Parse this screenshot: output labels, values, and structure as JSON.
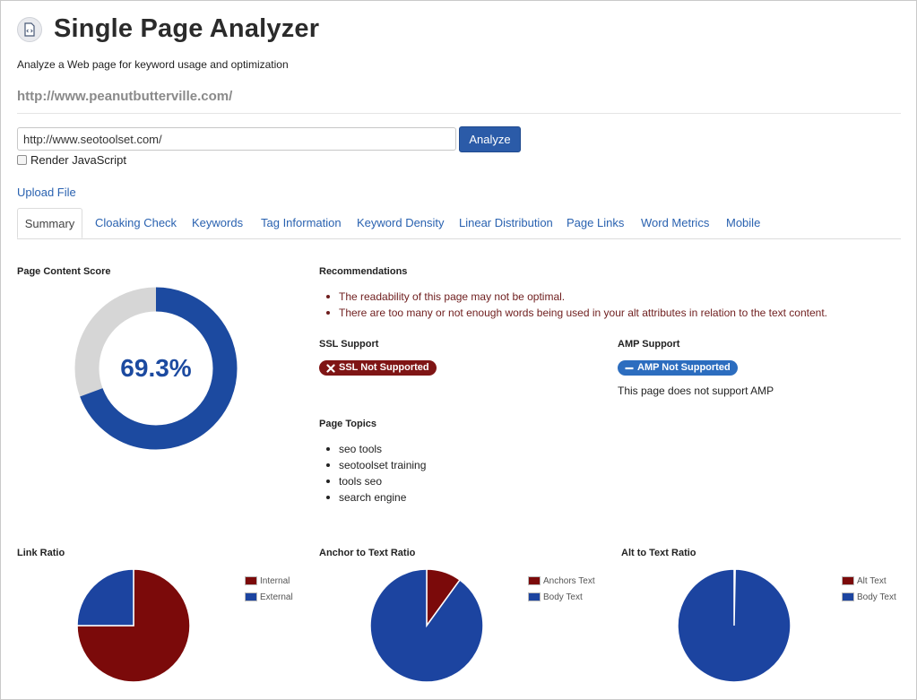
{
  "header": {
    "title": "Single Page Analyzer",
    "subtitle": "Analyze a Web page for keyword usage and optimization",
    "analyzed_url": "http://www.peanutbutterville.com/",
    "logo_icon": "code-file-icon"
  },
  "form": {
    "url_value": "http://www.seotoolset.com/",
    "analyze_label": "Analyze",
    "render_js_label": "Render JavaScript",
    "render_js_checked": false,
    "upload_label": "Upload File"
  },
  "tabs": [
    {
      "label": "Summary",
      "active": true
    },
    {
      "label": "Cloaking Check"
    },
    {
      "label": "Keywords"
    },
    {
      "label": "Tag Information"
    },
    {
      "label": "Keyword Density"
    },
    {
      "label": "Linear Distribution"
    },
    {
      "label": "Page Links"
    },
    {
      "label": "Word Metrics"
    },
    {
      "label": "Mobile"
    }
  ],
  "score": {
    "label": "Page Content Score",
    "value_text": "69.3%",
    "value": 69.3,
    "fill_color": "#1c4aa0",
    "track_color": "#d6d6d6"
  },
  "recommendations": {
    "label": "Recommendations",
    "items": [
      "The readability of this page may not be optimal.",
      "There are too many or not enough words being used in your alt attributes in relation to the text content."
    ]
  },
  "ssl": {
    "label": "SSL Support",
    "badge_text": "SSL Not Supported",
    "badge_icon": "x-icon",
    "color": "#7f1515"
  },
  "amp": {
    "label": "AMP Support",
    "badge_text": "AMP Not Supported",
    "badge_icon": "minus-icon",
    "color": "#2c6dbf",
    "note": "This page does not support AMP"
  },
  "topics": {
    "label": "Page Topics",
    "items": [
      "seo tools",
      "seotoolset training",
      "tools seo",
      "search engine"
    ]
  },
  "colors": {
    "dark_red": "#7b0a0a",
    "blue": "#1c44a0"
  },
  "chart_data": [
    {
      "type": "pie",
      "title": "Link Ratio",
      "categories": [
        "Internal",
        "External"
      ],
      "values": [
        75,
        25
      ],
      "colors": [
        "#7b0a0a",
        "#1c44a0"
      ]
    },
    {
      "type": "pie",
      "title": "Anchor to Text Ratio",
      "categories": [
        "Anchors Text",
        "Body Text"
      ],
      "values": [
        10,
        90
      ],
      "colors": [
        "#7b0a0a",
        "#1c44a0"
      ]
    },
    {
      "type": "pie",
      "title": "Alt to Text Ratio",
      "categories": [
        "Alt Text",
        "Body Text"
      ],
      "values": [
        0.3,
        99.7
      ],
      "colors": [
        "#7b0a0a",
        "#1c44a0"
      ]
    }
  ]
}
